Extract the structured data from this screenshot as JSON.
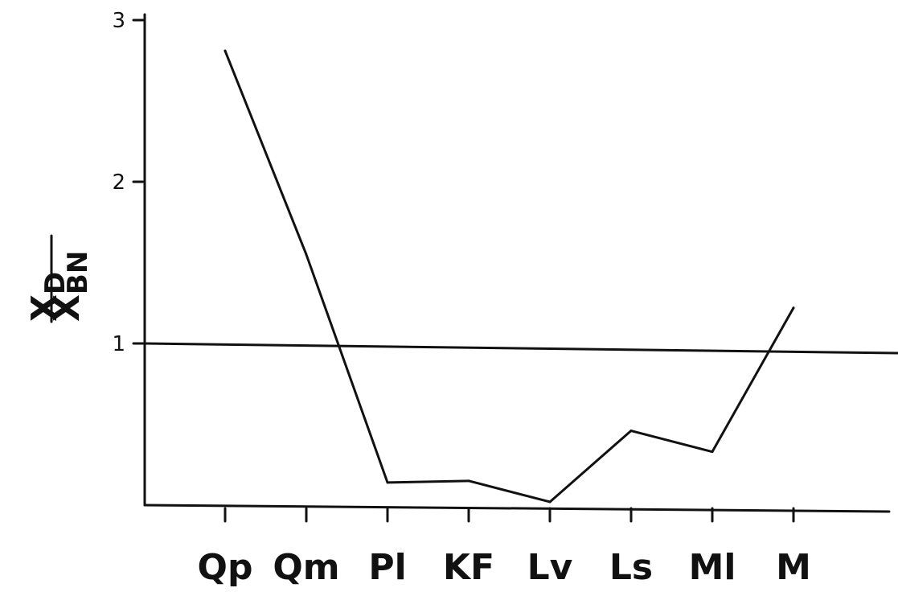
{
  "chart_data": {
    "type": "line",
    "categories": [
      "Qp",
      "Qm",
      "Pl",
      "KF",
      "Lv",
      "Ls",
      "Ml",
      "M"
    ],
    "values": [
      2.81,
      1.55,
      0.14,
      0.15,
      0.02,
      0.46,
      0.33,
      1.22
    ],
    "ylim": [
      0,
      3
    ],
    "yticks": [
      "1",
      "2",
      "3"
    ],
    "ylabel": {
      "numerator": "X",
      "numerator_sub": "D",
      "denominator": "X",
      "denominator_sub": "BN"
    },
    "reference_line": 1,
    "grid": false,
    "legend": "none"
  }
}
